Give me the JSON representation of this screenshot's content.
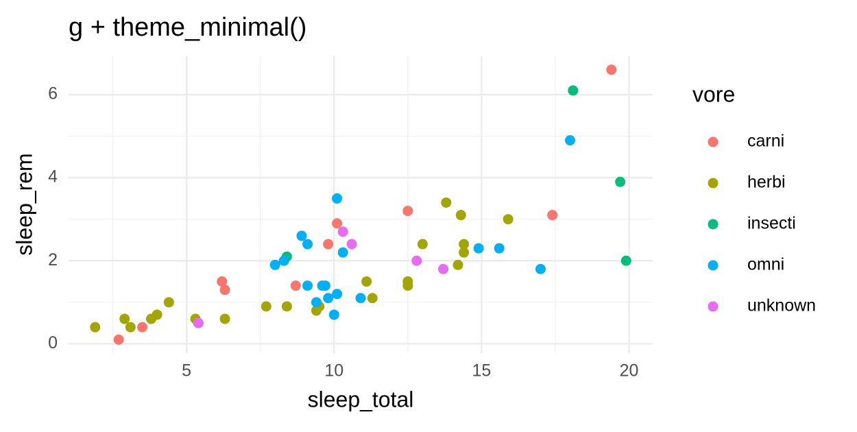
{
  "chart_data": {
    "type": "scatter",
    "title": "g + theme_minimal()",
    "x_label": "sleep_total",
    "y_label": "sleep_rem",
    "legend_title": "vore",
    "xlim": [
      1.0,
      20.8
    ],
    "ylim": [
      -0.225,
      6.925
    ],
    "xticks": [
      5,
      10,
      15,
      20
    ],
    "yticks": [
      0,
      2,
      4,
      6
    ],
    "xminor": [
      2.5,
      7.5,
      12.5,
      17.5
    ],
    "yminor": [
      1,
      3,
      5
    ],
    "grid": true,
    "legend": "right",
    "series": [
      {
        "name": "carni",
        "color": "#F8766D",
        "x": [
          19.4,
          2.7,
          3.5,
          6.2,
          6.3,
          8.7,
          9.8,
          10.1,
          12.5,
          17.4
        ],
        "y": [
          6.6,
          0.1,
          0.4,
          1.5,
          1.3,
          1.4,
          2.4,
          2.9,
          3.2,
          3.1
        ]
      },
      {
        "name": "herbi",
        "color": "#A3A500",
        "x": [
          1.9,
          2.9,
          3.1,
          3.8,
          4.0,
          4.4,
          5.3,
          5.4,
          6.3,
          7.7,
          8.4,
          9.4,
          9.5,
          11.1,
          11.3,
          12.5,
          12.5,
          13.0,
          13.8,
          14.2,
          14.3,
          14.4,
          14.4,
          15.9
        ],
        "y": [
          0.4,
          0.6,
          0.4,
          0.6,
          0.7,
          1.0,
          0.6,
          0.5,
          0.6,
          0.9,
          0.9,
          0.8,
          0.9,
          1.5,
          1.1,
          1.5,
          1.4,
          2.4,
          3.4,
          1.9,
          3.1,
          2.4,
          2.2,
          3.0
        ]
      },
      {
        "name": "insecti",
        "color": "#00BF7D",
        "x": [
          18.1,
          19.7,
          19.9,
          8.4
        ],
        "y": [
          6.1,
          3.9,
          2.0,
          2.1
        ]
      },
      {
        "name": "omni",
        "color": "#00B0F6",
        "x": [
          8.0,
          8.3,
          8.9,
          9.1,
          9.1,
          9.4,
          9.6,
          9.7,
          9.8,
          10.0,
          10.1,
          10.1,
          10.3,
          10.9,
          14.9,
          15.6,
          17.0,
          18.0
        ],
        "y": [
          1.9,
          2.0,
          2.6,
          2.4,
          1.4,
          1.0,
          1.4,
          1.4,
          1.1,
          0.7,
          1.2,
          3.5,
          2.2,
          1.1,
          2.3,
          2.3,
          1.8,
          4.9
        ]
      },
      {
        "name": "unknown",
        "color": "#E76BF3",
        "x": [
          5.4,
          10.3,
          10.6,
          12.8,
          13.7
        ],
        "y": [
          0.5,
          2.7,
          2.4,
          2.0,
          1.8
        ]
      }
    ]
  }
}
